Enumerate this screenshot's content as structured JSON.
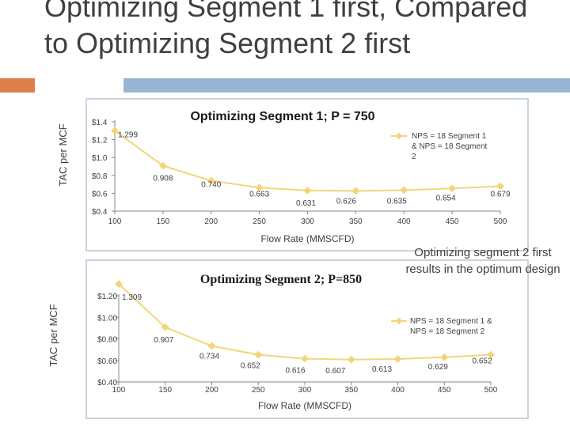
{
  "slide": {
    "title": "Optimizing Segment 1 first, Compared to Optimizing Segment 2 first",
    "note": "Optimizing segment 2 first results in the optimum design"
  },
  "colors": {
    "title": "#3f3f3f",
    "accent_orange": "#dd8047",
    "accent_blue": "#94b6d2",
    "series": "#f2d57a",
    "axis": "#868686",
    "text": "#404040"
  },
  "chart_data": [
    {
      "type": "line",
      "title": "Optimizing Segment 1; P = 750",
      "xlabel": "Flow Rate (MMSCFD)",
      "ylabel": "TAC per MCF",
      "x": [
        100,
        150,
        200,
        250,
        300,
        350,
        400,
        450,
        500
      ],
      "xlim": [
        100,
        500
      ],
      "ylim": [
        0.4,
        1.4
      ],
      "x_ticks": [
        "100",
        "150",
        "200",
        "250",
        "300",
        "350",
        "400",
        "450",
        "500"
      ],
      "y_ticks": [
        "$0.4",
        "$0.6",
        "$0.8",
        "$1.0",
        "$1.2",
        "$1.4"
      ],
      "y_tick_values": [
        0.4,
        0.6,
        0.8,
        1.0,
        1.2,
        1.4
      ],
      "series": [
        {
          "name": "NPS = 18 Segment 1 & NPS = 18 Segment 2",
          "values": [
            1.299,
            0.908,
            0.74,
            0.663,
            0.631,
            0.626,
            0.635,
            0.654,
            0.679
          ],
          "labels": [
            "1.299",
            "0.908",
            "0.740",
            "0.663",
            "0.631",
            "0.626",
            "0.635",
            "0.654",
            "0.679"
          ]
        }
      ],
      "grid": false,
      "legend": "top-right"
    },
    {
      "type": "line",
      "title": "Optimizing Segment 2; P=850",
      "xlabel": "Flow Rate (MMSCFD)",
      "ylabel": "TAC per MCF",
      "x": [
        100,
        150,
        200,
        250,
        300,
        350,
        400,
        450,
        500
      ],
      "xlim": [
        100,
        500
      ],
      "ylim": [
        0.4,
        1.2
      ],
      "x_ticks": [
        "100",
        "150",
        "200",
        "250",
        "300",
        "350",
        "400",
        "450",
        "500"
      ],
      "y_ticks": [
        "$0.40",
        "$0.60",
        "$0.80",
        "$1.00",
        "$1.20"
      ],
      "y_tick_values": [
        0.4,
        0.6,
        0.8,
        1.0,
        1.2
      ],
      "series": [
        {
          "name": "NPS = 18 Segment 1 & NPS = 18 Segment 2",
          "values": [
            1.309,
            0.907,
            0.734,
            0.652,
            0.616,
            0.607,
            0.613,
            0.629,
            0.652
          ],
          "labels": [
            "1.309",
            "0.907",
            "0.734",
            "0.652",
            "0.616",
            "0.607",
            "0.613",
            "0.629",
            "0.652"
          ]
        }
      ],
      "grid": false,
      "legend": "top-right"
    }
  ]
}
